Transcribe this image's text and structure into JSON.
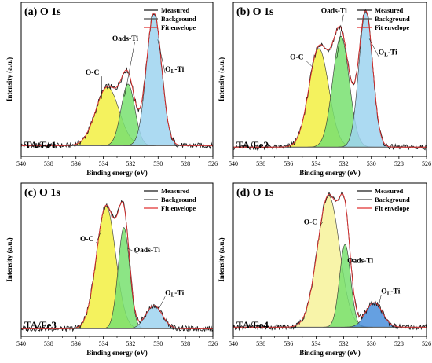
{
  "chart_data": [
    {
      "type": "line",
      "panel_label": "(a) O 1s",
      "sample_label": "TA/Fe1",
      "xlabel": "Binding energy (eV)",
      "ylabel": "Intensity (a.u.)",
      "xlim": [
        540,
        526
      ],
      "x_ticks": [
        540,
        538,
        536,
        534,
        532,
        530,
        528,
        526
      ],
      "ylim": [
        0,
        1
      ],
      "legend": [
        "Measured",
        "Background",
        "Fit envelope"
      ],
      "legend_position": "top-right",
      "colors": {
        "measured": "#1a1a1a",
        "background": "#4d4d4d",
        "envelope": "#e03030"
      },
      "background_level": 0.07,
      "peaks": [
        {
          "name": "O-C",
          "center": 533.7,
          "height": 0.38,
          "sigma": 0.85,
          "color": "#f2f042",
          "label_at": [
            534.8,
            0.53
          ]
        },
        {
          "name": "Oads-Ti",
          "center": 532.2,
          "height": 0.4,
          "sigma": 0.5,
          "color": "#78e070",
          "label_at": [
            532.4,
            0.75
          ]
        },
        {
          "name": "OL-Ti",
          "center": 530.3,
          "height": 0.86,
          "sigma": 0.55,
          "color": "#9ed4f0",
          "label_at": [
            528.8,
            0.55
          ]
        }
      ]
    },
    {
      "type": "line",
      "panel_label": "(b) O 1s",
      "sample_label": "TA/Fe2",
      "xlabel": "Binding energy (eV)",
      "ylabel": "Intensity (a.u.)",
      "xlim": [
        540,
        526
      ],
      "x_ticks": [
        540,
        538,
        536,
        534,
        532,
        530,
        528,
        526
      ],
      "ylim": [
        0,
        1
      ],
      "legend": [
        "Measured",
        "Background",
        "Fit envelope"
      ],
      "legend_position": "top-right",
      "colors": {
        "measured": "#1a1a1a",
        "background": "#4d4d4d",
        "envelope": "#e03030"
      },
      "background_level": 0.06,
      "peaks": [
        {
          "name": "O-C",
          "center": 533.8,
          "height": 0.64,
          "sigma": 0.72,
          "color": "#f2f042",
          "label_at": [
            535.4,
            0.63
          ]
        },
        {
          "name": "Oads-Ti",
          "center": 532.2,
          "height": 0.72,
          "sigma": 0.6,
          "color": "#78e070",
          "label_at": [
            532.7,
            0.93
          ]
        },
        {
          "name": "OL-Ti",
          "center": 530.4,
          "height": 0.88,
          "sigma": 0.5,
          "color": "#9ed4f0",
          "label_at": [
            528.8,
            0.66
          ]
        }
      ]
    },
    {
      "type": "line",
      "panel_label": "(c) O 1s",
      "sample_label": "TA/Fe3",
      "xlabel": "Binding energy (eV)",
      "ylabel": "Intensity (a.u.)",
      "xlim": [
        540,
        526
      ],
      "x_ticks": [
        540,
        538,
        536,
        534,
        532,
        530,
        528,
        526
      ],
      "ylim": [
        0,
        1
      ],
      "legend": [
        "Measured",
        "Background",
        "Fit envelope"
      ],
      "legend_position": "top-right",
      "colors": {
        "measured": "#1a1a1a",
        "background": "#4d4d4d",
        "envelope": "#e03030"
      },
      "background_level": 0.05,
      "peaks": [
        {
          "name": "O-C",
          "center": 533.8,
          "height": 0.8,
          "sigma": 0.7,
          "color": "#f2f042",
          "label_at": [
            535.2,
            0.62
          ]
        },
        {
          "name": "Oads-Ti",
          "center": 532.5,
          "height": 0.66,
          "sigma": 0.42,
          "color": "#78e070",
          "label_at": [
            530.8,
            0.55
          ]
        },
        {
          "name": "OL-Ti",
          "center": 530.3,
          "height": 0.15,
          "sigma": 0.6,
          "color": "#9ed4f0",
          "label_at": [
            528.8,
            0.27
          ]
        }
      ]
    },
    {
      "type": "line",
      "panel_label": "(d) O 1s",
      "sample_label": "TA/Fe4",
      "xlabel": "Binding energy (eV)",
      "ylabel": "Intensity (a.u.)",
      "xlim": [
        540,
        526
      ],
      "x_ticks": [
        540,
        538,
        536,
        534,
        532,
        530,
        528,
        526
      ],
      "ylim": [
        0,
        1
      ],
      "legend": [
        "Measured",
        "Background",
        "Fit envelope"
      ],
      "legend_position": "top-right",
      "colors": {
        "measured": "#1a1a1a",
        "background": "#4d4d4d",
        "envelope": "#e03030"
      },
      "background_level": 0.06,
      "peaks": [
        {
          "name": "O-C",
          "center": 533.1,
          "height": 0.86,
          "sigma": 0.8,
          "color": "#f7f29a",
          "label_at": [
            534.4,
            0.73
          ]
        },
        {
          "name": "Oads-Ti",
          "center": 531.9,
          "height": 0.54,
          "sigma": 0.4,
          "color": "#78e070",
          "label_at": [
            530.8,
            0.48
          ]
        },
        {
          "name": "OL-Ti",
          "center": 529.8,
          "height": 0.16,
          "sigma": 0.6,
          "color": "#4a8fdc",
          "label_at": [
            528.6,
            0.28
          ]
        }
      ]
    }
  ]
}
